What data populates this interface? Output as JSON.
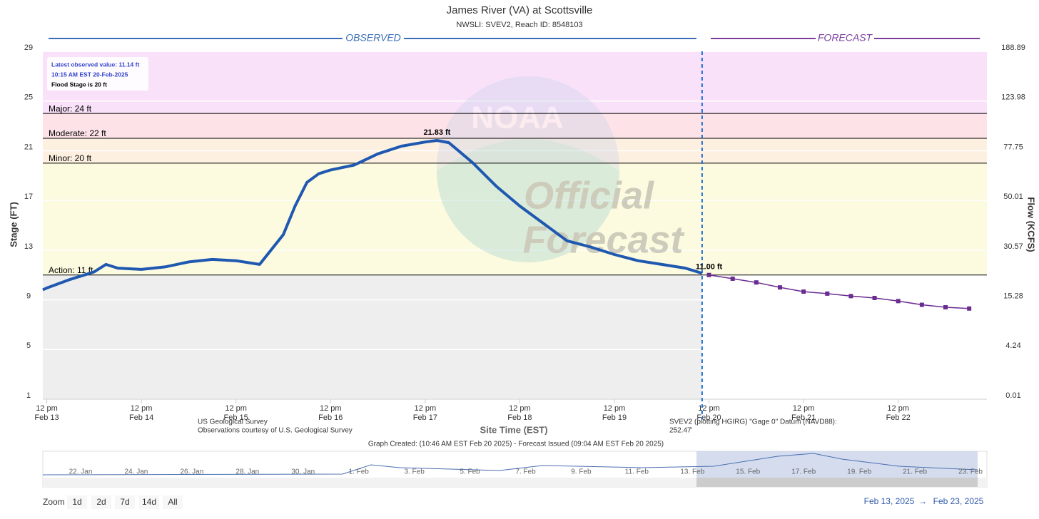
{
  "chart_data": {
    "type": "line",
    "title": "James River (VA) at Scottsville",
    "subtitle": "NWSLI: SVEV2, Reach ID: 8548103",
    "section_labels": [
      "OBSERVED",
      "FORECAST"
    ],
    "y_label": "Stage (FT)",
    "y2_label": "Flow (KCFS)",
    "x_label": "Site Time (EST)",
    "xlim": [
      "2025-02-13T11:00",
      "2025-02-23T10:30"
    ],
    "xticks": [
      {
        "value": "2025-02-13T12:00",
        "label": [
          "12 pm",
          "Feb 13"
        ]
      },
      {
        "value": "2025-02-14T12:00",
        "label": [
          "12 pm",
          "Feb 14"
        ]
      },
      {
        "value": "2025-02-15T12:00",
        "label": [
          "12 pm",
          "Feb 15"
        ]
      },
      {
        "value": "2025-02-16T12:00",
        "label": [
          "12 pm",
          "Feb 16"
        ]
      },
      {
        "value": "2025-02-17T12:00",
        "label": [
          "12 pm",
          "Feb 17"
        ]
      },
      {
        "value": "2025-02-18T12:00",
        "label": [
          "12 pm",
          "Feb 18"
        ]
      },
      {
        "value": "2025-02-19T12:00",
        "label": [
          "12 pm",
          "Feb 19"
        ]
      },
      {
        "value": "2025-02-20T12:00",
        "label": [
          "12 pm",
          "Feb 20"
        ]
      },
      {
        "value": "2025-02-21T12:00",
        "label": [
          "12 pm",
          "Feb 21"
        ]
      },
      {
        "value": "2025-02-22T12:00",
        "label": [
          "12 pm",
          "Feb 22"
        ]
      }
    ],
    "ylim": [
      1,
      29
    ],
    "yticks": [
      1,
      5,
      9,
      13,
      17,
      21,
      25,
      29
    ],
    "y2ticks": [
      0.01,
      4.24,
      15.28,
      30.57,
      50.01,
      77.75,
      123.98,
      188.89
    ],
    "grid": true,
    "forecast_start": "2025-02-20T10:15",
    "observed_shade_color": "#eeeeee",
    "flood_categories": [
      {
        "label": "Action: 11 ft",
        "value": 11,
        "color": "#fcfadf"
      },
      {
        "label": "Minor: 20 ft",
        "value": 20,
        "color": "#fdf0e1"
      },
      {
        "label": "Moderate: 22 ft",
        "value": 22,
        "color": "#fde3e7"
      },
      {
        "label": "Major: 24 ft",
        "value": 24,
        "color": "#f8e1f9"
      }
    ],
    "series": [
      {
        "name": "Observed",
        "color": "#1f58b0",
        "x": [
          "2025-02-13T11:00",
          "2025-02-13T12:00",
          "2025-02-13T18:00",
          "2025-02-14T00:00",
          "2025-02-14T03:00",
          "2025-02-14T06:00",
          "2025-02-14T12:00",
          "2025-02-14T18:00",
          "2025-02-15T00:00",
          "2025-02-15T06:00",
          "2025-02-15T12:00",
          "2025-02-15T18:00",
          "2025-02-16T00:00",
          "2025-02-16T03:00",
          "2025-02-16T06:00",
          "2025-02-16T09:00",
          "2025-02-16T12:00",
          "2025-02-16T18:00",
          "2025-02-17T00:00",
          "2025-02-17T06:00",
          "2025-02-17T12:00",
          "2025-02-17T15:00",
          "2025-02-17T18:00",
          "2025-02-18T00:00",
          "2025-02-18T06:00",
          "2025-02-18T12:00",
          "2025-02-18T18:00",
          "2025-02-19T00:00",
          "2025-02-19T06:00",
          "2025-02-19T12:00",
          "2025-02-19T18:00",
          "2025-02-20T00:00",
          "2025-02-20T06:00",
          "2025-02-20T10:15"
        ],
        "values": [
          9.8,
          9.95,
          10.65,
          11.25,
          11.85,
          11.55,
          11.45,
          11.65,
          12.05,
          12.25,
          12.15,
          11.85,
          14.25,
          16.55,
          18.45,
          19.15,
          19.45,
          19.85,
          20.75,
          21.37,
          21.7,
          21.83,
          21.65,
          20.05,
          18.15,
          16.55,
          15.15,
          13.75,
          13.25,
          12.65,
          12.15,
          11.85,
          11.55,
          11.14
        ],
        "value_labels": [
          null,
          null,
          null,
          null,
          null,
          null,
          null,
          null,
          null,
          null,
          null,
          null,
          null,
          null,
          null,
          null,
          null,
          null,
          null,
          null,
          null,
          "21.83 ft",
          null,
          null,
          null,
          null,
          null,
          null,
          null,
          null,
          null,
          null,
          null,
          null
        ]
      },
      {
        "name": "Forecast",
        "color": "#6a2c91",
        "x": [
          "2025-02-20T12:00",
          "2025-02-20T18:00",
          "2025-02-21T00:00",
          "2025-02-21T06:00",
          "2025-02-21T12:00",
          "2025-02-21T18:00",
          "2025-02-22T00:00",
          "2025-02-22T06:00",
          "2025-02-22T12:00",
          "2025-02-22T18:00",
          "2025-02-23T00:00",
          "2025-02-23T06:00"
        ],
        "values": [
          11.0,
          10.7,
          10.4,
          10.0,
          9.66,
          9.5,
          9.3,
          9.15,
          8.9,
          8.6,
          8.4,
          8.3
        ],
        "value_labels": [
          "11.00 ft",
          null,
          null,
          null,
          null,
          null,
          null,
          null,
          null,
          null,
          null,
          null
        ]
      }
    ],
    "annotations": [
      "Latest observed value: 11.14 ft",
      "10:15 AM EST 20-Feb-2025",
      "Flood Stage is 20 ft"
    ],
    "watermark": [
      "NOAA",
      "Official",
      "Forecast"
    ],
    "credits_left": [
      "US Geological Survey",
      "Observations courtesy of U.S. Geological Survey"
    ],
    "credits_right": [
      "SVEV2 (plotting HGIRG) \"Gage 0\" Datum (NAVD88):",
      "252.47'"
    ],
    "graph_created": "Graph Created: (10:46 AM EST Feb 20 2025) - Forecast Issued (09:04 AM EST Feb 20 2025)"
  },
  "navigator": {
    "labels": [
      "22. Jan",
      "24. Jan",
      "26. Jan",
      "28. Jan",
      "30. Jan",
      "1. Feb",
      "3. Feb",
      "5. Feb",
      "7. Feb",
      "9. Feb",
      "11. Feb",
      "13. Feb",
      "15. Feb",
      "17. Feb",
      "19. Feb",
      "21. Feb",
      "23. Feb"
    ]
  },
  "range_selector": {
    "label": "Zoom",
    "buttons": [
      "1d",
      "2d",
      "7d",
      "14d",
      "All"
    ],
    "from": "Feb 13, 2025",
    "arrow": "→",
    "to": "Feb 23, 2025"
  }
}
